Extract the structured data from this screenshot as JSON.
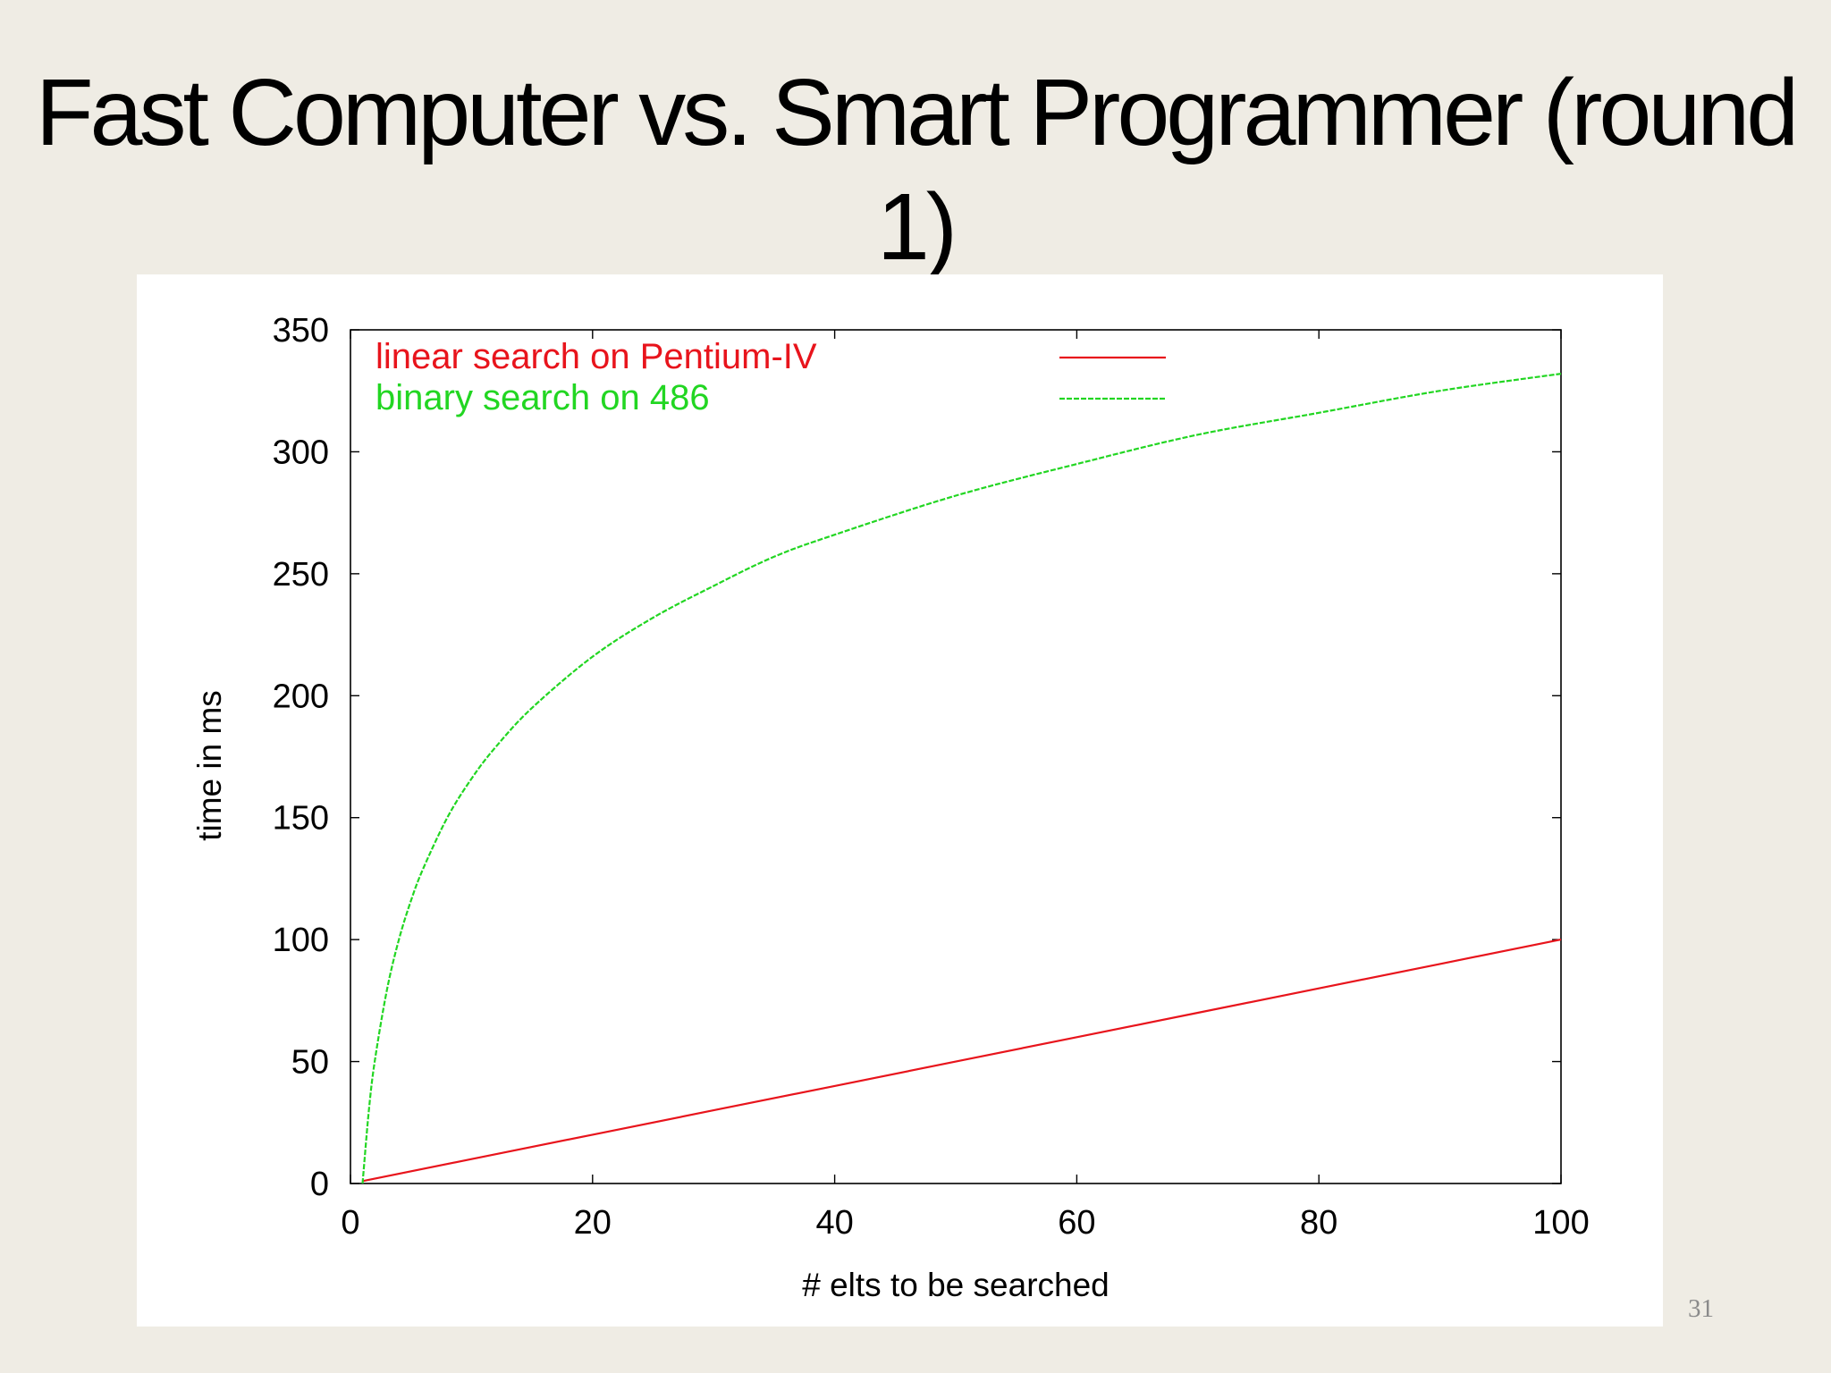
{
  "slide": {
    "title_line1": "Fast Computer vs. Smart Programmer (round",
    "title_line2": "1)",
    "page_number": "31"
  },
  "chart_data": {
    "type": "line",
    "title": "",
    "xlabel": "# elts to be searched",
    "ylabel": "time in ms",
    "xlim": [
      0,
      100
    ],
    "ylim": [
      0,
      350
    ],
    "xticks": [
      0,
      20,
      40,
      60,
      80,
      100
    ],
    "yticks": [
      0,
      50,
      100,
      150,
      200,
      250,
      300,
      350
    ],
    "grid": false,
    "legend_position": "top-left",
    "series": [
      {
        "name": "linear search on Pentium-IV",
        "color": "#e8141c",
        "line_style": "solid",
        "x": [
          1,
          10,
          20,
          30,
          40,
          50,
          60,
          70,
          80,
          90,
          100
        ],
        "y": [
          1,
          10,
          20,
          30,
          40,
          50,
          60,
          70,
          80,
          90,
          100
        ]
      },
      {
        "name": "binary search on 486",
        "color": "#22d622",
        "line_style": "dashed",
        "x": [
          1,
          1.5,
          2,
          3,
          4,
          5,
          6,
          8,
          10,
          12,
          15,
          20,
          25,
          30,
          35,
          40,
          50,
          60,
          70,
          80,
          90,
          100
        ],
        "y": [
          0,
          29,
          50,
          79,
          100,
          116,
          129,
          150,
          166,
          179,
          195,
          216,
          232,
          245,
          257,
          266,
          282,
          295,
          307,
          316,
          325,
          332
        ]
      }
    ]
  }
}
